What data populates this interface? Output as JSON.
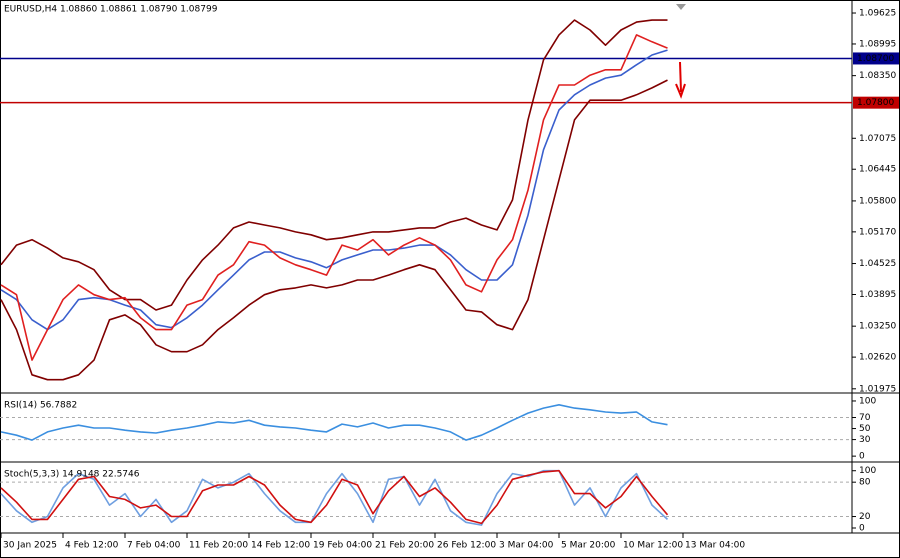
{
  "chart_data": [
    {
      "type": "line",
      "title": "EURUSD,H4  1.08860 1.08861 1.08790 1.08799",
      "categories": [
        "30 Jan 2025",
        null,
        null,
        null,
        "4 Feb 12:00",
        null,
        null,
        null,
        "7 Feb 04:00",
        null,
        null,
        null,
        "11 Feb 20:00",
        null,
        null,
        null,
        "14 Feb 12:00",
        null,
        null,
        null,
        "19 Feb 04:00",
        null,
        null,
        null,
        "21 Feb 20:00",
        null,
        null,
        null,
        "26 Feb 12:00",
        null,
        null,
        null,
        "3 Mar 04:00",
        null,
        null,
        null,
        "5 Mar 20:00",
        null,
        null,
        null,
        "10 Mar 12:00",
        null,
        null,
        null,
        "13 Mar 04:00"
      ],
      "series": [
        {
          "color": "#800000",
          "values": [
            1.045,
            1.049,
            1.0501,
            1.0484,
            1.0464,
            1.0456,
            1.044,
            1.0399,
            1.0379,
            1.0379,
            1.0358,
            1.0368,
            1.0419,
            1.046,
            1.049,
            1.0525,
            1.0537,
            1.0531,
            1.0525,
            1.0517,
            1.0511,
            1.0501,
            1.0505,
            1.0511,
            1.0517,
            1.0517,
            1.0521,
            1.0525,
            1.0525,
            1.0537,
            1.0545,
            1.0531,
            1.0521,
            1.0582,
            1.0745,
            1.0867,
            1.0918,
            1.0948,
            1.0928,
            1.0897,
            1.0928,
            1.0944,
            1.0948,
            1.0948,
            null
          ]
        },
        {
          "color": "#800000",
          "values": [
            1.0379,
            1.0318,
            1.0226,
            1.0216,
            1.0216,
            1.0226,
            1.0256,
            1.0338,
            1.0348,
            1.0328,
            1.0287,
            1.0273,
            1.0273,
            1.0287,
            1.0318,
            1.0342,
            1.0368,
            1.0389,
            1.0399,
            1.0403,
            1.0409,
            1.0403,
            1.0409,
            1.0419,
            1.0419,
            1.0429,
            1.044,
            1.045,
            1.044,
            1.0399,
            1.0358,
            1.0354,
            1.0328,
            1.0318,
            1.0379,
            1.0501,
            1.0623,
            1.0745,
            1.0785,
            1.0785,
            1.0785,
            1.0796,
            1.081,
            1.0826,
            null
          ]
        },
        {
          "color": "#3a5fcd",
          "values": [
            1.0399,
            1.0379,
            1.0338,
            1.0318,
            1.0338,
            1.0379,
            1.0383,
            1.0379,
            1.0368,
            1.0358,
            1.0328,
            1.0322,
            1.0342,
            1.0368,
            1.0399,
            1.0429,
            1.046,
            1.0476,
            1.0476,
            1.0464,
            1.0456,
            1.0444,
            1.046,
            1.047,
            1.048,
            1.048,
            1.0484,
            1.049,
            1.049,
            1.047,
            1.044,
            1.0419,
            1.0419,
            1.045,
            1.0551,
            1.0684,
            1.0765,
            1.0796,
            1.0816,
            1.083,
            1.0836,
            1.0857,
            1.0877,
            1.0887,
            null
          ]
        },
        {
          "color": "#e02020",
          "values": [
            1.0409,
            1.0389,
            1.0256,
            1.0318,
            1.0379,
            1.0409,
            1.0389,
            1.0379,
            1.0383,
            1.0342,
            1.0318,
            1.0318,
            1.0368,
            1.0379,
            1.0429,
            1.045,
            1.0497,
            1.049,
            1.0464,
            1.045,
            1.044,
            1.0429,
            1.049,
            1.048,
            1.0501,
            1.047,
            1.049,
            1.0505,
            1.049,
            1.046,
            1.0409,
            1.0395,
            1.046,
            1.0501,
            1.0602,
            1.0745,
            1.0816,
            1.0816,
            1.0836,
            1.0847,
            1.0847,
            1.0918,
            1.0904,
            1.0891,
            null
          ]
        }
      ],
      "ylim": [
        1.0191,
        1.0989
      ],
      "yticks": [
        1.09625,
        1.08995,
        {
          "value": 1.0835,
          "label": "1.08350"
        },
        1.07075,
        1.06445,
        {
          "value": 1.058,
          "label": "1.05800"
        },
        {
          "value": 1.0517,
          "label": "1.05170"
        },
        1.04525,
        1.03895,
        {
          "value": 1.0325,
          "label": "1.03250"
        },
        {
          "value": 1.0262,
          "label": "1.02620"
        },
        1.01975
      ],
      "levels": [
        {
          "value": 1.087,
          "label": "1.08700",
          "color": "#00008b"
        },
        {
          "value": 1.078,
          "label": "1.07800",
          "color": "#c00000"
        }
      ]
    },
    {
      "type": "line",
      "title": "RSI(14) 56.7882",
      "series": [
        {
          "color": "#3b8fe0",
          "values": [
            44,
            38,
            29,
            44,
            51,
            56,
            51,
            51,
            47,
            44,
            42,
            47,
            51,
            56,
            62,
            60,
            65,
            56,
            53,
            51,
            47,
            44,
            58,
            53,
            60,
            51,
            56,
            56,
            51,
            44,
            29,
            38,
            51,
            65,
            78,
            87,
            93,
            87,
            84,
            80,
            78,
            80,
            62,
            57,
            null
          ]
        }
      ],
      "ylim": [
        -7,
        109
      ],
      "yticks": [
        0,
        30,
        50,
        70,
        100
      ],
      "levels": [
        30,
        70
      ]
    },
    {
      "type": "line",
      "title": "Stoch(5,3,3) 14.9148 22.5746",
      "series": [
        {
          "color": "#6f9fe0",
          "values": [
            60,
            30,
            10,
            20,
            70,
            95,
            85,
            40,
            60,
            20,
            50,
            10,
            30,
            85,
            70,
            80,
            95,
            60,
            30,
            10,
            10,
            60,
            95,
            60,
            10,
            85,
            90,
            40,
            85,
            30,
            10,
            5,
            60,
            95,
            90,
            100,
            100,
            40,
            70,
            20,
            70,
            95,
            40,
            15,
            null
          ]
        },
        {
          "color": "#d01010",
          "values": [
            70,
            45,
            15,
            15,
            50,
            85,
            90,
            55,
            50,
            35,
            40,
            20,
            20,
            65,
            75,
            75,
            90,
            75,
            40,
            15,
            10,
            40,
            85,
            75,
            25,
            65,
            90,
            55,
            70,
            45,
            15,
            8,
            40,
            85,
            92,
            98,
            100,
            60,
            60,
            35,
            55,
            90,
            55,
            23,
            null
          ]
        }
      ],
      "ylim": [
        -7,
        110
      ],
      "yticks": [
        0,
        20,
        80,
        100
      ],
      "levels": [
        20,
        80
      ]
    }
  ]
}
